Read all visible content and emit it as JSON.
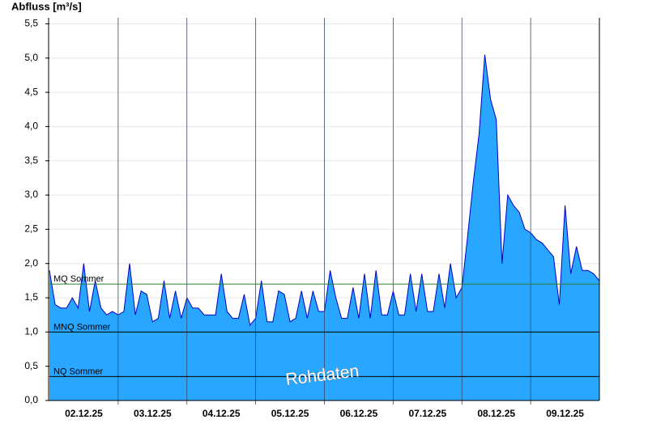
{
  "chart_data": {
    "type": "area",
    "y_label": "Abfluss [m³/s]",
    "watermark": "Rohdaten",
    "x": [
      0,
      2,
      4,
      6,
      8,
      10,
      12,
      14,
      16,
      18,
      20,
      22,
      24,
      26,
      28,
      30,
      32,
      34,
      36,
      38,
      40,
      42,
      44,
      46,
      48,
      50,
      52,
      54,
      56,
      58,
      60,
      62,
      64,
      66,
      68,
      70,
      72,
      74,
      76,
      78,
      80,
      82,
      84,
      86,
      88,
      90,
      92,
      94,
      96,
      98,
      100,
      102,
      104,
      106,
      108,
      110,
      112,
      114,
      116,
      118,
      120,
      122,
      124,
      126,
      128,
      130,
      132,
      134,
      136,
      138,
      140,
      142,
      144,
      146,
      148,
      150,
      152,
      154,
      156,
      158,
      160,
      162,
      164,
      166,
      168,
      170,
      172,
      174,
      176,
      178,
      180,
      182,
      184,
      186,
      188,
      190,
      192
    ],
    "series": [
      {
        "color": "#29a6ff",
        "line_color": "#0000c8",
        "values": [
          1.9,
          1.4,
          1.35,
          1.35,
          1.5,
          1.35,
          2.0,
          1.3,
          1.75,
          1.35,
          1.25,
          1.3,
          1.25,
          1.3,
          2.0,
          1.25,
          1.6,
          1.55,
          1.15,
          1.2,
          1.75,
          1.2,
          1.6,
          1.2,
          1.5,
          1.35,
          1.35,
          1.25,
          1.25,
          1.25,
          1.85,
          1.3,
          1.2,
          1.2,
          1.55,
          1.1,
          1.2,
          1.75,
          1.15,
          1.15,
          1.6,
          1.55,
          1.15,
          1.2,
          1.6,
          1.2,
          1.6,
          1.3,
          1.3,
          1.9,
          1.5,
          1.2,
          1.2,
          1.65,
          1.2,
          1.85,
          1.2,
          1.9,
          1.25,
          1.25,
          1.6,
          1.25,
          1.25,
          1.85,
          1.3,
          1.85,
          1.3,
          1.3,
          1.85,
          1.35,
          2.0,
          1.5,
          1.65,
          2.4,
          3.2,
          3.9,
          5.05,
          4.4,
          4.1,
          2.0,
          3.0,
          2.85,
          2.75,
          2.5,
          2.45,
          2.35,
          2.3,
          2.2,
          2.1,
          1.4,
          2.85,
          1.85,
          2.25,
          1.9,
          1.9,
          1.85,
          1.75
        ]
      }
    ],
    "reference_lines": [
      {
        "name": "MQ Sommer",
        "value": 1.7,
        "color": "#2e7d32"
      },
      {
        "name": "MNQ Sommer",
        "value": 1.0,
        "color": "#000000"
      },
      {
        "name": "NQ Sommer",
        "value": 0.35,
        "color": "#000000"
      }
    ],
    "xlim": [
      0,
      192
    ],
    "xticks": [
      {
        "value": 12,
        "label": "02.12.25"
      },
      {
        "value": 36,
        "label": "03.12.25"
      },
      {
        "value": 60,
        "label": "04.12.25"
      },
      {
        "value": 84,
        "label": "05.12.25"
      },
      {
        "value": 108,
        "label": "06.12.25"
      },
      {
        "value": 132,
        "label": "07.12.25"
      },
      {
        "value": 156,
        "label": "08.12.25"
      },
      {
        "value": 180,
        "label": "09.12.25"
      }
    ],
    "xgrid": [
      24,
      48,
      72,
      96,
      120,
      144,
      168
    ],
    "ylim": [
      0,
      5.6
    ],
    "yticks": [
      {
        "value": 0,
        "label": "0,0"
      },
      {
        "value": 0.5,
        "label": "0,5"
      },
      {
        "value": 1.0,
        "label": "1,0"
      },
      {
        "value": 1.5,
        "label": "1,5"
      },
      {
        "value": 2.0,
        "label": "2,0"
      },
      {
        "value": 2.5,
        "label": "2,5"
      },
      {
        "value": 3.0,
        "label": "3,0"
      },
      {
        "value": 3.5,
        "label": "3,5"
      },
      {
        "value": 4.0,
        "label": "4,0"
      },
      {
        "value": 4.5,
        "label": "4,5"
      },
      {
        "value": 5.0,
        "label": "5,0"
      },
      {
        "value": 5.5,
        "label": "5,5"
      }
    ],
    "grid": true
  }
}
